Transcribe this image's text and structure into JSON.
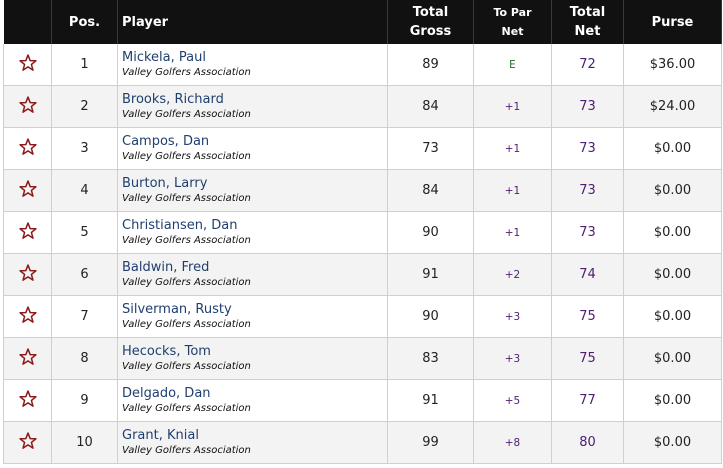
{
  "columns": {
    "pos": "Pos.",
    "player": "Player",
    "total_gross_1": "Total",
    "total_gross_2": "Gross",
    "to_par_1": "To Par",
    "to_par_2": "Net",
    "total_net_1": "Total",
    "total_net_2": "Net",
    "purse": "Purse"
  },
  "colors": {
    "header_bg": "#111111",
    "star": "#8b1a1a",
    "name": "#1f3f6e",
    "net": "#4b1f6e",
    "even_par": "#1e6e2b"
  },
  "icons": {
    "favorite": "star-outline-icon"
  },
  "rows": [
    {
      "pos": "1",
      "name": "Mickela, Paul",
      "assoc": "Valley Golfers Association",
      "gross": "89",
      "to_par": "E",
      "net": "72",
      "purse": "$36.00"
    },
    {
      "pos": "2",
      "name": "Brooks, Richard",
      "assoc": "Valley Golfers Association",
      "gross": "84",
      "to_par": "+1",
      "net": "73",
      "purse": "$24.00"
    },
    {
      "pos": "3",
      "name": "Campos, Dan",
      "assoc": "Valley Golfers Association",
      "gross": "73",
      "to_par": "+1",
      "net": "73",
      "purse": "$0.00"
    },
    {
      "pos": "4",
      "name": "Burton, Larry",
      "assoc": "Valley Golfers Association",
      "gross": "84",
      "to_par": "+1",
      "net": "73",
      "purse": "$0.00"
    },
    {
      "pos": "5",
      "name": "Christiansen, Dan",
      "assoc": "Valley Golfers Association",
      "gross": "90",
      "to_par": "+1",
      "net": "73",
      "purse": "$0.00"
    },
    {
      "pos": "6",
      "name": "Baldwin, Fred",
      "assoc": "Valley Golfers Association",
      "gross": "91",
      "to_par": "+2",
      "net": "74",
      "purse": "$0.00"
    },
    {
      "pos": "7",
      "name": "Silverman, Rusty",
      "assoc": "Valley Golfers Association",
      "gross": "90",
      "to_par": "+3",
      "net": "75",
      "purse": "$0.00"
    },
    {
      "pos": "8",
      "name": "Hecocks, Tom",
      "assoc": "Valley Golfers Association",
      "gross": "83",
      "to_par": "+3",
      "net": "75",
      "purse": "$0.00"
    },
    {
      "pos": "9",
      "name": "Delgado, Dan",
      "assoc": "Valley Golfers Association",
      "gross": "91",
      "to_par": "+5",
      "net": "77",
      "purse": "$0.00"
    },
    {
      "pos": "10",
      "name": "Grant, Knial",
      "assoc": "Valley Golfers Association",
      "gross": "99",
      "to_par": "+8",
      "net": "80",
      "purse": "$0.00"
    }
  ]
}
